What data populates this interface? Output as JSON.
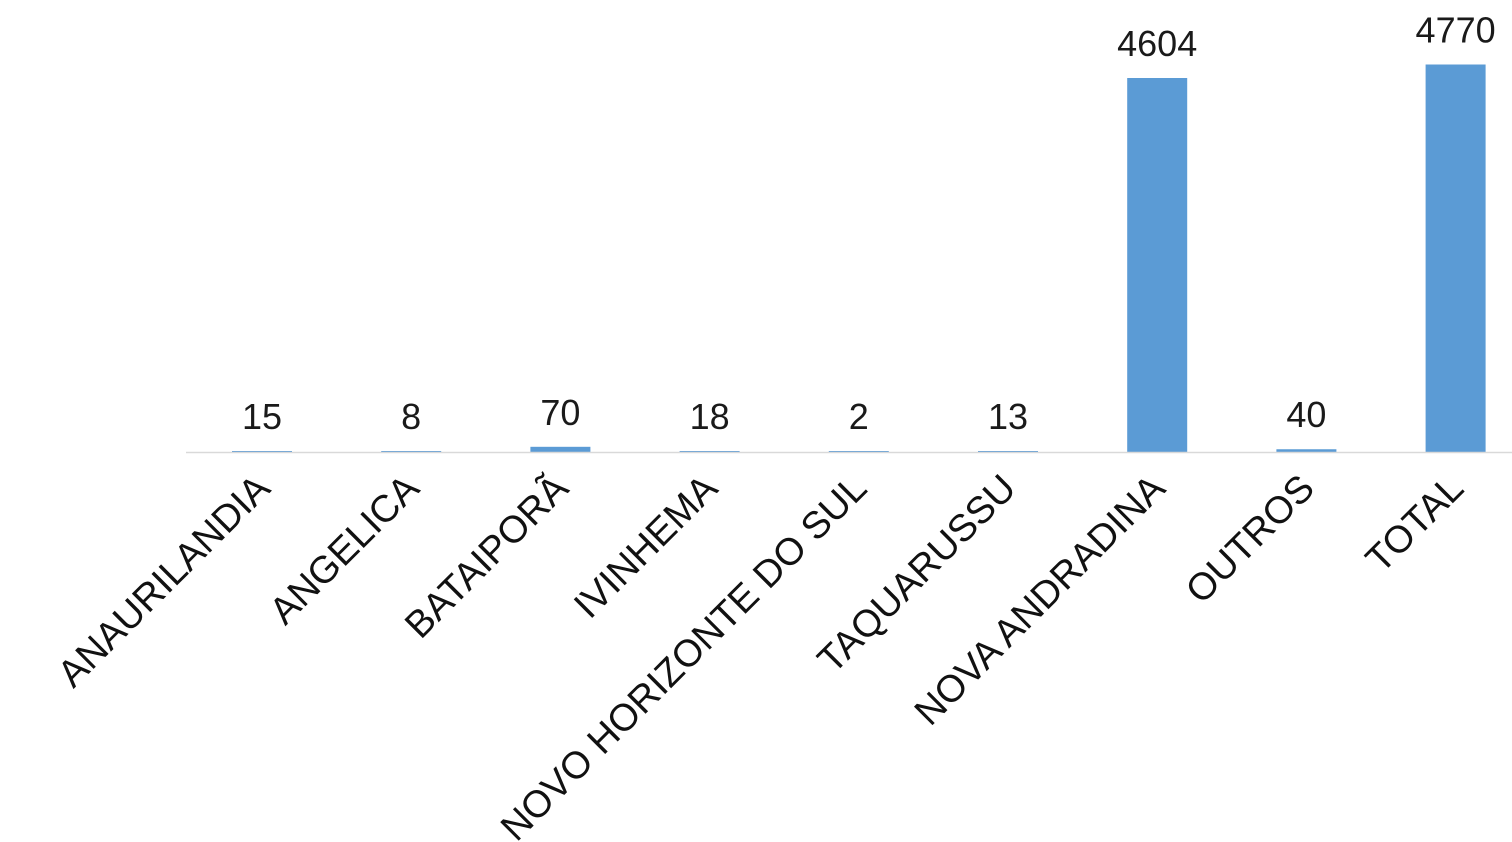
{
  "chart_data": {
    "type": "bar",
    "title": "",
    "xlabel": "",
    "ylabel": "",
    "categories": [
      "ANAURILANDIA",
      "ANGELICA",
      "BATAIPORÃ",
      "IVINHEMA",
      "NOVO HORIZONTE DO SUL",
      "TAQUARUSSU",
      "NOVA ANDRADINA",
      "OUTROS",
      "TOTAL"
    ],
    "values": [
      15,
      8,
      70,
      18,
      2,
      13,
      4604,
      40,
      4770
    ],
    "ylim": [
      0,
      4770
    ],
    "grid": false,
    "legend": "none",
    "bar_color": "#5b9bd5",
    "axis_color": "#d9d9d9"
  }
}
